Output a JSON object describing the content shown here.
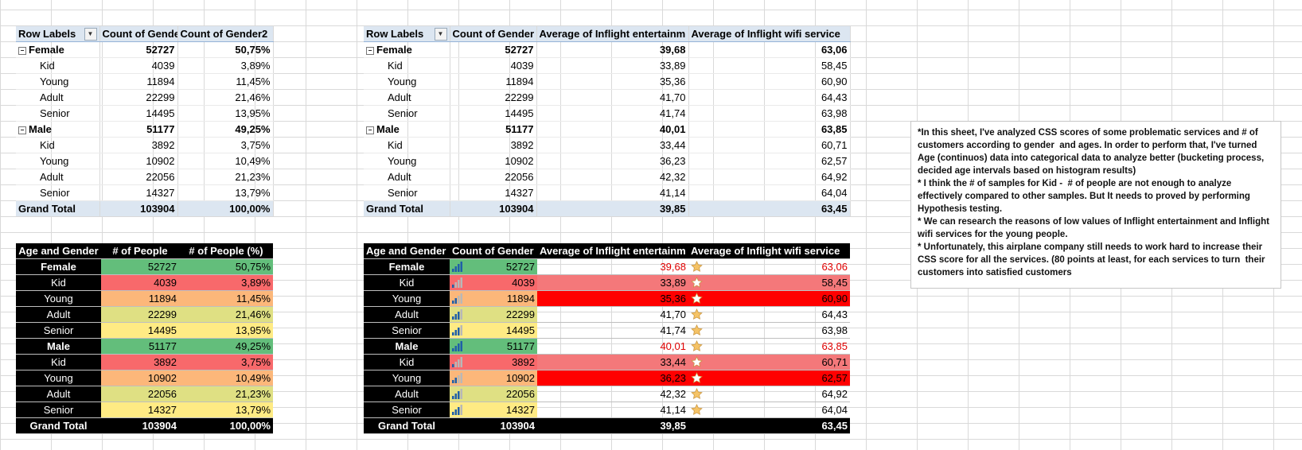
{
  "pivot1": {
    "headers": [
      "Row Labels",
      "Count of Gende",
      "Count of Gender2"
    ],
    "rows": [
      {
        "label": "Female",
        "v1": "52727",
        "v2": "50,75%"
      },
      {
        "label": "Kid",
        "v1": "4039",
        "v2": "3,89%"
      },
      {
        "label": "Young",
        "v1": "11894",
        "v2": "11,45%"
      },
      {
        "label": "Adult",
        "v1": "22299",
        "v2": "21,46%"
      },
      {
        "label": "Senior",
        "v1": "14495",
        "v2": "13,95%"
      },
      {
        "label": "Male",
        "v1": "51177",
        "v2": "49,25%"
      },
      {
        "label": "Kid",
        "v1": "3892",
        "v2": "3,75%"
      },
      {
        "label": "Young",
        "v1": "10902",
        "v2": "10,49%"
      },
      {
        "label": "Adult",
        "v1": "22056",
        "v2": "21,23%"
      },
      {
        "label": "Senior",
        "v1": "14327",
        "v2": "13,79%"
      },
      {
        "label": "Grand Total",
        "v1": "103904",
        "v2": "100,00%"
      }
    ]
  },
  "pivot2": {
    "headers": [
      "Row Labels",
      "Count of Gender",
      "Average of Inflight entertainm",
      "Average of Inflight wifi service"
    ],
    "rows": [
      {
        "label": "Female",
        "v1": "52727",
        "v2": "39,68",
        "v3": "63,06"
      },
      {
        "label": "Kid",
        "v1": "4039",
        "v2": "33,89",
        "v3": "58,45"
      },
      {
        "label": "Young",
        "v1": "11894",
        "v2": "35,36",
        "v3": "60,90"
      },
      {
        "label": "Adult",
        "v1": "22299",
        "v2": "41,70",
        "v3": "64,43"
      },
      {
        "label": "Senior",
        "v1": "14495",
        "v2": "41,74",
        "v3": "63,98"
      },
      {
        "label": "Male",
        "v1": "51177",
        "v2": "40,01",
        "v3": "63,85"
      },
      {
        "label": "Kid",
        "v1": "3892",
        "v2": "33,44",
        "v3": "60,71"
      },
      {
        "label": "Young",
        "v1": "10902",
        "v2": "36,23",
        "v3": "62,57"
      },
      {
        "label": "Adult",
        "v1": "22056",
        "v2": "42,32",
        "v3": "64,92"
      },
      {
        "label": "Senior",
        "v1": "14327",
        "v2": "41,14",
        "v3": "64,04"
      },
      {
        "label": "Grand Total",
        "v1": "103904",
        "v2": "39,85",
        "v3": "63,45"
      }
    ]
  },
  "table3": {
    "headers": [
      "Age and Gender",
      "# of People",
      "# of People (%)"
    ],
    "rows": [
      {
        "label": "Female",
        "v1": "52727",
        "v2": "50,75%"
      },
      {
        "label": "Kid",
        "v1": "4039",
        "v2": "3,89%"
      },
      {
        "label": "Young",
        "v1": "11894",
        "v2": "11,45%"
      },
      {
        "label": "Adult",
        "v1": "22299",
        "v2": "21,46%"
      },
      {
        "label": "Senior",
        "v1": "14495",
        "v2": "13,95%"
      },
      {
        "label": "Male",
        "v1": "51177",
        "v2": "49,25%"
      },
      {
        "label": "Kid",
        "v1": "3892",
        "v2": "3,75%"
      },
      {
        "label": "Young",
        "v1": "10902",
        "v2": "10,49%"
      },
      {
        "label": "Adult",
        "v1": "22056",
        "v2": "21,23%"
      },
      {
        "label": "Senior",
        "v1": "14327",
        "v2": "13,79%"
      },
      {
        "label": "Grand Total",
        "v1": "103904",
        "v2": "100,00%"
      }
    ]
  },
  "table4": {
    "headers": [
      "Age and Gender",
      "Count of Gender",
      "Average of Inflight entertainm",
      "Average of Inflight wifi service"
    ],
    "rows": [
      {
        "label": "Female",
        "v1": "52727",
        "v2": "39,68",
        "v3": "63,06"
      },
      {
        "label": "Kid",
        "v1": "4039",
        "v2": "33,89",
        "v3": "58,45"
      },
      {
        "label": "Young",
        "v1": "11894",
        "v2": "35,36",
        "v3": "60,90"
      },
      {
        "label": "Adult",
        "v1": "22299",
        "v2": "41,70",
        "v3": "64,43"
      },
      {
        "label": "Senior",
        "v1": "14495",
        "v2": "41,74",
        "v3": "63,98"
      },
      {
        "label": "Male",
        "v1": "51177",
        "v2": "40,01",
        "v3": "63,85"
      },
      {
        "label": "Kid",
        "v1": "3892",
        "v2": "33,44",
        "v3": "60,71"
      },
      {
        "label": "Young",
        "v1": "10902",
        "v2": "36,23",
        "v3": "62,57"
      },
      {
        "label": "Adult",
        "v1": "22056",
        "v2": "42,32",
        "v3": "64,92"
      },
      {
        "label": "Senior",
        "v1": "14327",
        "v2": "41,14",
        "v3": "64,04"
      },
      {
        "label": "Grand Total",
        "v1": "103904",
        "v2": "39,85",
        "v3": "63,45"
      }
    ]
  },
  "note": {
    "text": "*In this sheet, I've analyzed CSS scores of some problematic services and # of customers according to gender  and ages. In order to perform that, I've turned Age (continuos) data into categorical data to analyze better (bucketing process, decided age intervals based on histogram results)\n* I think the # of samples for Kid -  # of people are not enough to analyze effectively compared to other samples. But It needs to proved by performing Hypothesis testing.\n* We can research the reasons of low values of Inflight entertainment and Inflight wifi services for the young people.\n* Unfortunately, this airplane company still needs to work hard to increase their CSS score for all the services. (80 points at least, for each services to turn  their customers into satisfied customers"
  },
  "colors": {
    "pivot_header": "#dce6f1",
    "green": "#63be7b",
    "yellow": "#ffeb84",
    "orange": "#fcb77a",
    "red": "#f8696b",
    "pink": "#f4787a",
    "bright_red": "#ff0000",
    "red_text": "#e00000",
    "icon_blue": "#1f5fa8",
    "star_gold": "#f5c366"
  }
}
